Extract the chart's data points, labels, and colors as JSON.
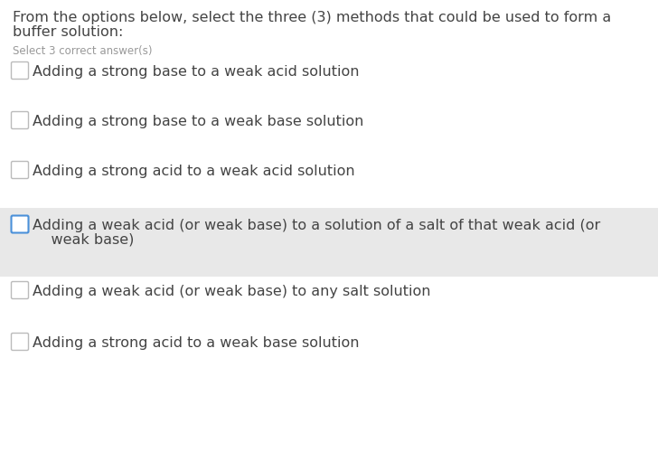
{
  "title_line1": "From the options below, select the three (3) methods that could be used to form a",
  "title_line2": "buffer solution:",
  "subtitle": "Select 3 correct answer(s)",
  "options": [
    {
      "text": "Adding a strong base to a weak acid solution",
      "highlighted": false,
      "line2": null
    },
    {
      "text": "Adding a strong base to a weak base solution",
      "highlighted": false,
      "line2": null
    },
    {
      "text": "Adding a strong acid to a weak acid solution",
      "highlighted": false,
      "line2": null
    },
    {
      "text": "Adding a weak acid (or weak base) to a solution of a salt of that weak acid (or",
      "highlighted": true,
      "line2": "    weak base)"
    },
    {
      "text": "Adding a weak acid (or weak base) to any salt solution",
      "highlighted": false,
      "line2": null
    },
    {
      "text": "Adding a strong acid to a weak base solution",
      "highlighted": false,
      "line2": null
    }
  ],
  "bg_color": "#ffffff",
  "highlight_color": "#e8e8e8",
  "title_color": "#444444",
  "subtitle_color": "#999999",
  "option_color": "#444444",
  "checkbox_border_color": "#bbbbbb",
  "checkbox_highlight_border": "#4a90d9",
  "title_fontsize": 11.5,
  "subtitle_fontsize": 8.5,
  "option_fontsize": 11.5
}
